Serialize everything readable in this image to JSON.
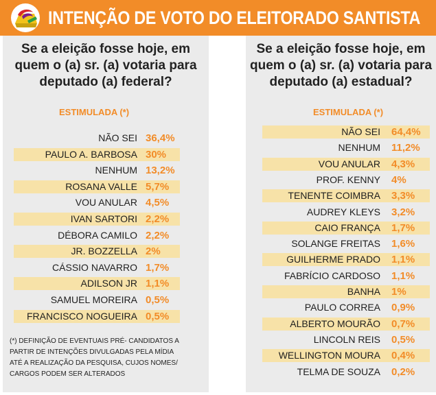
{
  "header": {
    "title": "INTENÇÃO DE VOTO DO ELEITORADO SANTISTA",
    "logo_icon": "ballot-box-logo-icon",
    "colors": {
      "accent": "#f28c28",
      "highlight": "#f7e2a8",
      "panel": "#ebebeb"
    }
  },
  "chart_data": [
    {
      "type": "table",
      "title": [
        "Se a eleição fosse hoje, em",
        "quem o (a) sr. (a) votaria para",
        "deputado (a) federal?"
      ],
      "subtitle": "ESTIMULADA (*)",
      "rows": [
        {
          "name": "NÃO SEI",
          "value": "36,4%",
          "highlight": false
        },
        {
          "name": "PAULO A. BARBOSA",
          "value": "30%",
          "highlight": true
        },
        {
          "name": "NENHUM",
          "value": "13,2%",
          "highlight": false
        },
        {
          "name": "ROSANA VALLE",
          "value": "5,7%",
          "highlight": true
        },
        {
          "name": "VOU ANULAR",
          "value": "4,5%",
          "highlight": false
        },
        {
          "name": "IVAN SARTORI",
          "value": "2,2%",
          "highlight": true
        },
        {
          "name": "DÉBORA CAMILO",
          "value": "2,2%",
          "highlight": false
        },
        {
          "name": "JR. BOZZELLA",
          "value": "2%",
          "highlight": true
        },
        {
          "name": "CÁSSIO NAVARRO",
          "value": "1,7%",
          "highlight": false
        },
        {
          "name": "ADILSON JR",
          "value": "1,1%",
          "highlight": true
        },
        {
          "name": "SAMUEL MOREIRA",
          "value": "0,5%",
          "highlight": false
        },
        {
          "name": "FRANCISCO NOGUEIRA",
          "value": "0,5%",
          "highlight": true
        }
      ],
      "footnote": [
        "(*) DEFINIÇÃO DE EVENTUAIS PRÉ- CANDIDATOS A",
        "PARTIR DE INTENÇÕES DIVULGADAS PELA MÍDIA",
        "ATÉ A REALIZAÇÃO DA PESQUISA, CUJOS NOMES/",
        "CARGOS PODEM SER ALTERADOS"
      ]
    },
    {
      "type": "table",
      "title": [
        "Se a eleição fosse hoje, em",
        "quem o (a) sr. (a) votaria para",
        "deputado (a) estadual?"
      ],
      "subtitle": "ESTIMULADA (*)",
      "rows": [
        {
          "name": "NÃO SEI",
          "value": "64,4%",
          "highlight": true
        },
        {
          "name": "NENHUM",
          "value": "11,2%",
          "highlight": false
        },
        {
          "name": "VOU ANULAR",
          "value": "4,3%",
          "highlight": true
        },
        {
          "name": "PROF. KENNY",
          "value": "4%",
          "highlight": false
        },
        {
          "name": "TENENTE COIMBRA",
          "value": "3,3%",
          "highlight": true
        },
        {
          "name": "AUDREY KLEYS",
          "value": "3,2%",
          "highlight": false
        },
        {
          "name": "CAIO FRANÇA",
          "value": "1,7%",
          "highlight": true
        },
        {
          "name": "SOLANGE FREITAS",
          "value": "1,6%",
          "highlight": false
        },
        {
          "name": "GUILHERME PRADO",
          "value": "1,1%",
          "highlight": true
        },
        {
          "name": "FABRÍCIO CARDOSO",
          "value": "1,1%",
          "highlight": false
        },
        {
          "name": "BANHA",
          "value": "1%",
          "highlight": true
        },
        {
          "name": "PAULO CORREA",
          "value": "0,9%",
          "highlight": false
        },
        {
          "name": "ALBERTO MOURÃO",
          "value": "0,7%",
          "highlight": true
        },
        {
          "name": "LINCOLN REIS",
          "value": "0,5%",
          "highlight": false
        },
        {
          "name": "WELLINGTON MOURA",
          "value": "0,4%",
          "highlight": true
        },
        {
          "name": "TELMA DE SOUZA",
          "value": "0,2%",
          "highlight": false
        }
      ]
    }
  ]
}
